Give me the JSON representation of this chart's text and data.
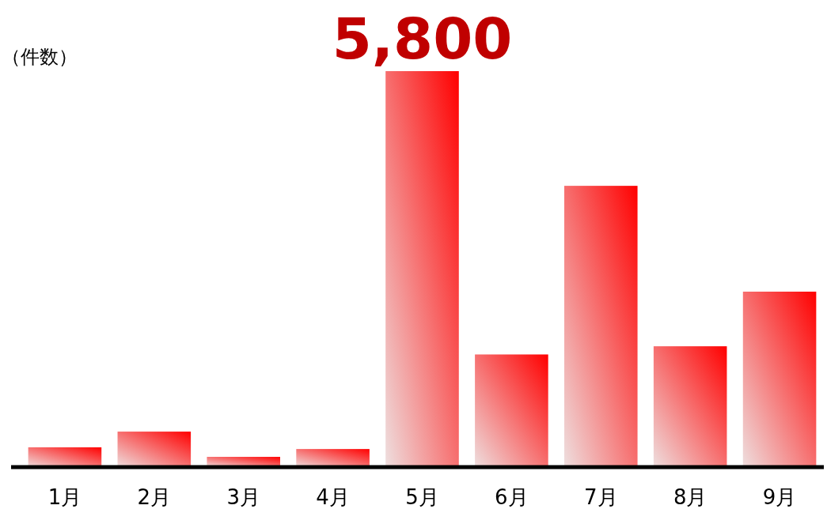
{
  "chart_data": {
    "type": "bar",
    "ylabel": "（件数）",
    "categories": [
      "1月",
      "2月",
      "3月",
      "4月",
      "5月",
      "6月",
      "7月",
      "8月",
      "9月"
    ],
    "values": [
      290,
      520,
      150,
      265,
      5800,
      1650,
      4120,
      1770,
      2570
    ],
    "value_labels": [
      null,
      null,
      null,
      null,
      "5,800",
      null,
      null,
      null,
      null
    ],
    "ylim": [
      0,
      5800
    ],
    "color": "#ff0000"
  }
}
